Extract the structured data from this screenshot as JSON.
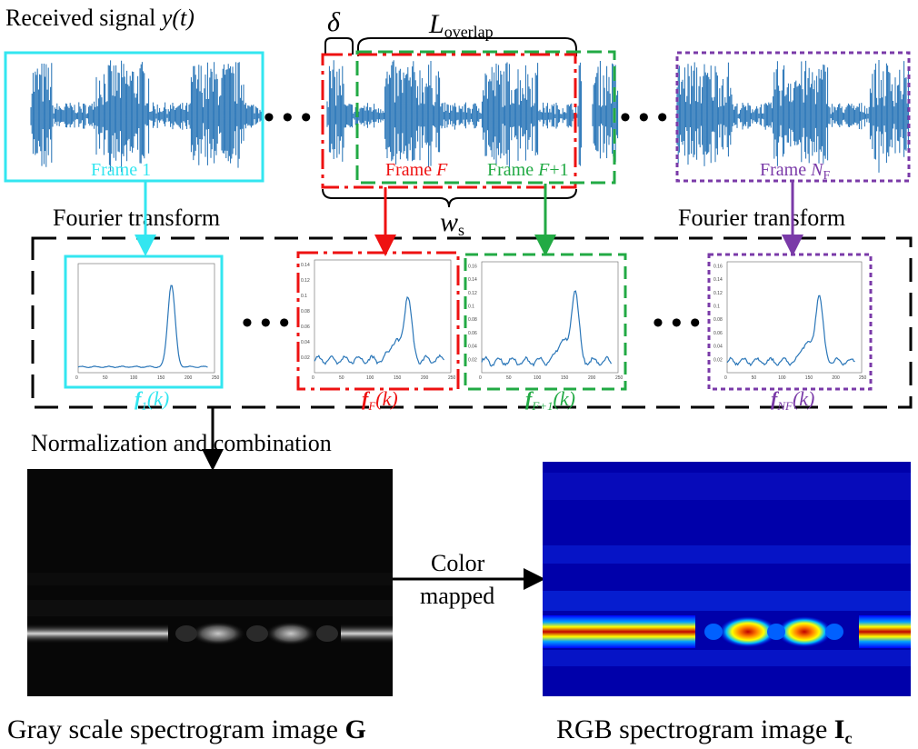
{
  "signal": {
    "title_prefix": "Received signal ",
    "title_var": "y(t)",
    "delta": "δ",
    "overlap_main": "L",
    "overlap_sub": "overlap",
    "ws_main": "w",
    "ws_sub": "s",
    "dots": "• • •"
  },
  "frames": {
    "frame1": "Frame 1",
    "frameF_prefix": "Frame ",
    "frameF_var": "F",
    "frameF1_prefix": "Frame ",
    "frameF1_var": "F",
    "frameF1_suffix": "+1",
    "frameN_prefix": "Frame ",
    "frameN_var": "N",
    "frameN_sub": "F"
  },
  "fourier": {
    "left": "Fourier transform",
    "right": "Fourier transform"
  },
  "spectra": {
    "f1_main": "f",
    "f1_sub": "1",
    "f1_arg": "(k)",
    "fF_main": "f",
    "fF_sub": "F",
    "fF_arg": "(k)",
    "fF1_main": "f",
    "fF1_sub": "F+1",
    "fF1_arg": "(k)",
    "fN_main": "f",
    "fN_sub": "NF",
    "fN_arg": "(k)",
    "x_ticks": [
      "0",
      "50",
      "100",
      "150",
      "200",
      "250"
    ],
    "y_ticks_F": [
      "0.02",
      "0.04",
      "0.06",
      "0.08",
      "0.1",
      "0.12",
      "0.14"
    ],
    "y_ticks_F1": [
      "0.02",
      "0.04",
      "0.06",
      "0.08",
      "0.1",
      "0.12",
      "0.14",
      "0.16"
    ],
    "y_ticks_N": [
      "0.02",
      "0.04",
      "0.06",
      "0.08",
      "0.1",
      "0.12",
      "0.14",
      "0.16"
    ]
  },
  "normalization": "Normalization and combination",
  "color_mapped": {
    "line1": "Color",
    "line2": "mapped"
  },
  "captions": {
    "gray_prefix": "Gray scale spectrogram image ",
    "gray_bold": "G",
    "rgb_prefix": "RGB spectrogram image ",
    "rgb_bold": "I",
    "rgb_sub": "c"
  },
  "colors": {
    "signal": "#1f6fb4",
    "frame1": "#33e6f0",
    "frameF": "#ee1111",
    "frameF1": "#22aa44",
    "frameN": "#7a3aa8",
    "curve": "#2a76b8"
  }
}
